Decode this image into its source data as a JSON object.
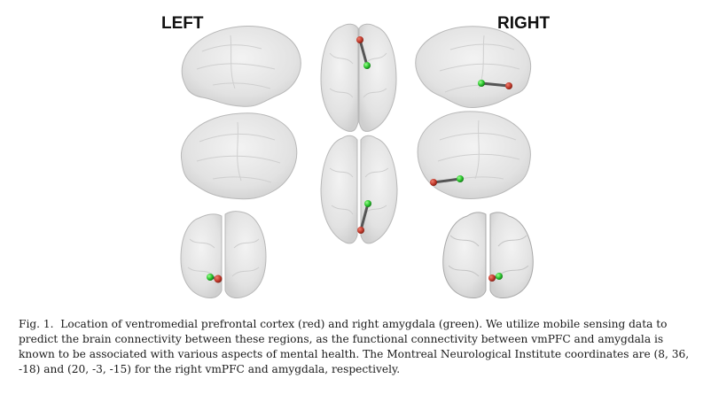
{
  "labels": {
    "left": "LEFT",
    "right": "RIGHT"
  },
  "legend_colors": {
    "vmpfc": "#c0392b",
    "amygdala": "#27c22b",
    "connection": "#555555",
    "brain_fill": "#e6e6e6",
    "brain_stroke": "#b5b5b5"
  },
  "caption": {
    "fig_label": "Fig. 1.",
    "text": "Location of ventromedial prefrontal cortex (red) and right amygdala (green). We utilize mobile sensing data to predict the brain connectivity between these regions, as the functional connectivity between vmPFC and amygdala is known to be associated with various aspects of mental health. The Montreal Neurological Institute coordinates are (8, 36, -18) and (20, -3, -15) for the right vmPFC and amygdala, respectively."
  }
}
